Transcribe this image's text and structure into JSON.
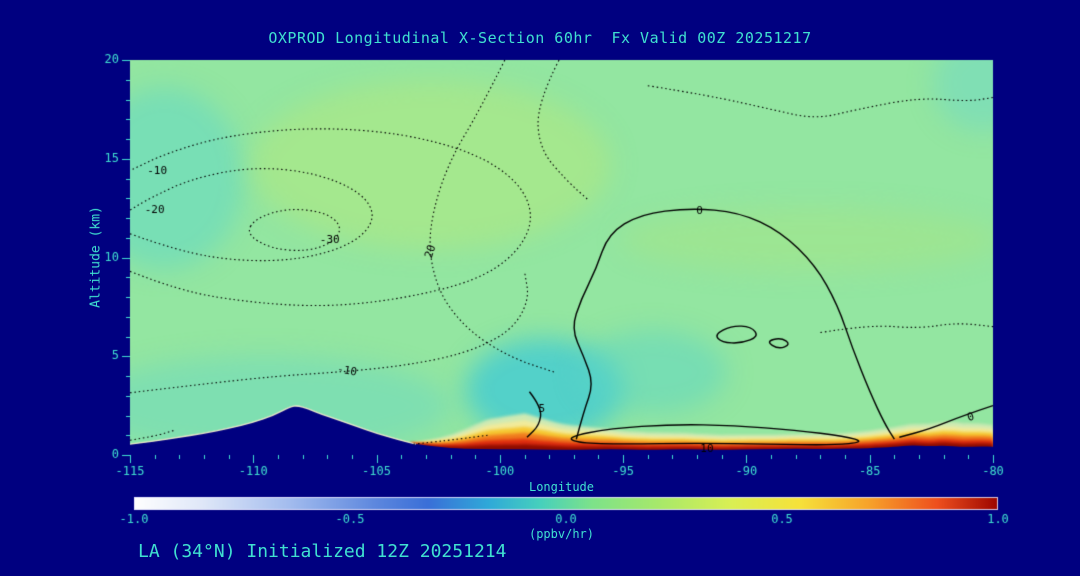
{
  "footer": {
    "text": "LA (34°N) Initialized 12Z 20251214"
  },
  "colors": {
    "page_background": "#000080",
    "axis_text": "#40e0d0",
    "contour_line": "#000000"
  },
  "chart_data": {
    "type": "heatmap",
    "title": "OXPROD Longitudinal X-Section 60hr  Fx Valid 00Z 20251217",
    "xlabel": "Longitude",
    "ylabel": "Altitude (km)",
    "xlim": [
      -115,
      -80
    ],
    "ylim": [
      0,
      20
    ],
    "x_ticks": [
      -115,
      -110,
      -105,
      -100,
      -95,
      -90,
      -85,
      -80
    ],
    "x_minor_step": 1,
    "y_ticks": [
      0,
      5,
      10,
      15,
      20
    ],
    "y_minor_step": 1,
    "base_color": "#93e6a1",
    "colorbar": {
      "units": "(ppbv/hr)",
      "ticks": [
        "-1.0",
        "-0.5",
        "0.0",
        "0.5",
        "1.0"
      ],
      "min": -1,
      "max": 1,
      "stops": [
        [
          0,
          "#ffffff"
        ],
        [
          0.08,
          "#dfe7f8"
        ],
        [
          0.18,
          "#a3bcee"
        ],
        [
          0.28,
          "#5d87de"
        ],
        [
          0.34,
          "#3a6fd8"
        ],
        [
          0.41,
          "#2fa9d9"
        ],
        [
          0.47,
          "#46d0bd"
        ],
        [
          0.53,
          "#7de28a"
        ],
        [
          0.61,
          "#a9e969"
        ],
        [
          0.69,
          "#d9ef54"
        ],
        [
          0.77,
          "#f6e23a"
        ],
        [
          0.85,
          "#f7a32b"
        ],
        [
          0.93,
          "#ee4f1e"
        ],
        [
          1,
          "#9c0500"
        ]
      ]
    },
    "terrain": [
      [
        -115,
        0.55
      ],
      [
        -114,
        0.7
      ],
      [
        -113,
        0.9
      ],
      [
        -112,
        1.1
      ],
      [
        -111,
        1.35
      ],
      [
        -110,
        1.65
      ],
      [
        -109.2,
        2.0
      ],
      [
        -108.5,
        2.45
      ],
      [
        -108.2,
        2.5
      ],
      [
        -107.8,
        2.35
      ],
      [
        -107.2,
        2.05
      ],
      [
        -106.5,
        1.75
      ],
      [
        -105.8,
        1.45
      ],
      [
        -105,
        1.1
      ],
      [
        -104.2,
        0.8
      ],
      [
        -103.4,
        0.55
      ],
      [
        -102.5,
        0.4
      ],
      [
        -101.5,
        0.32
      ],
      [
        -100,
        0.3
      ],
      [
        -98.5,
        0.28
      ],
      [
        -97,
        0.26
      ],
      [
        -95.5,
        0.3
      ],
      [
        -94,
        0.26
      ],
      [
        -92.5,
        0.3
      ],
      [
        -91,
        0.26
      ],
      [
        -89.5,
        0.3
      ],
      [
        -88,
        0.32
      ],
      [
        -86.5,
        0.3
      ],
      [
        -85,
        0.35
      ],
      [
        -84,
        0.42
      ],
      [
        -83.3,
        0.5
      ],
      [
        -82.6,
        0.44
      ],
      [
        -82,
        0.48
      ],
      [
        -81.2,
        0.4
      ],
      [
        -80.5,
        0.44
      ],
      [
        -80,
        0.42
      ]
    ],
    "fill_blobs": [
      {
        "lon": -113.6,
        "km": 14.0,
        "rlon": 3.2,
        "rkm": 4.6,
        "color": "#62d8c6",
        "alpha": 0.55
      },
      {
        "lon": -102.8,
        "km": 14.7,
        "rlon": 7.3,
        "rkm": 4.3,
        "color": "#b6ea7c",
        "alpha": 0.5
      },
      {
        "lon": -87.4,
        "km": 10.9,
        "rlon": 7.7,
        "rkm": 1.6,
        "color": "#aee478",
        "alpha": 0.35
      },
      {
        "lon": -109.5,
        "km": 2.5,
        "rlon": 7.5,
        "rkm": 2.5,
        "color": "#66d8c6",
        "alpha": 0.45
      },
      {
        "lon": -98.2,
        "km": 3.3,
        "rlon": 3.2,
        "rkm": 2.6,
        "color": "#38c8da",
        "alpha": 0.7
      },
      {
        "lon": -93.8,
        "km": 4.2,
        "rlon": 3.0,
        "rkm": 2.1,
        "color": "#5cd6c6",
        "alpha": 0.5
      },
      {
        "lon": -80.4,
        "km": 18.8,
        "rlon": 2.0,
        "rkm": 2.4,
        "color": "#6ad8cc",
        "alpha": 0.45
      }
    ],
    "surface_band": {
      "range": [
        -103.6,
        -80
      ],
      "layers": [
        {
          "t": 1.3,
          "color": "#cfeab4"
        },
        {
          "t": 1.05,
          "color": "#f2eb9a"
        },
        {
          "t": 0.82,
          "color": "#f6c832"
        },
        {
          "t": 0.6,
          "color": "#f07a1e"
        },
        {
          "t": 0.38,
          "color": "#df2e10"
        },
        {
          "t": 0.18,
          "color": "#8d0b00"
        }
      ],
      "scale": [
        [
          -103.6,
          0.0
        ],
        [
          -102,
          0.5
        ],
        [
          -100.5,
          1.15
        ],
        [
          -99,
          1.4
        ],
        [
          -97.5,
          1.0
        ],
        [
          -95,
          0.72
        ],
        [
          -92,
          0.6
        ],
        [
          -89,
          0.55
        ],
        [
          -86,
          0.6
        ],
        [
          -83.5,
          0.8
        ],
        [
          -81.5,
          0.95
        ],
        [
          -80,
          0.85
        ]
      ]
    },
    "contours": [
      {
        "style": "dotted",
        "closed": false,
        "points": [
          [
            -115,
            9.3
          ],
          [
            -113,
            8.3
          ],
          [
            -110,
            7.7
          ],
          [
            -107,
            7.5
          ],
          [
            -104,
            7.9
          ],
          [
            -101,
            8.8
          ],
          [
            -99.3,
            10.2
          ],
          [
            -98.6,
            12.0
          ],
          [
            -99.2,
            13.8
          ],
          [
            -101,
            15.3
          ],
          [
            -104,
            16.3
          ],
          [
            -107.5,
            16.6
          ],
          [
            -111,
            16.2
          ],
          [
            -113.5,
            15.3
          ],
          [
            -115,
            14.4
          ]
        ]
      },
      {
        "style": "dotted",
        "closed": false,
        "points": [
          [
            -115,
            11.2
          ],
          [
            -113,
            10.3
          ],
          [
            -110.5,
            9.8
          ],
          [
            -108,
            9.9
          ],
          [
            -105.9,
            10.7
          ],
          [
            -105,
            12.0
          ],
          [
            -105.6,
            13.3
          ],
          [
            -107.5,
            14.3
          ],
          [
            -110,
            14.6
          ],
          [
            -112.5,
            14.0
          ],
          [
            -114.2,
            13.0
          ],
          [
            -115,
            12.4
          ]
        ]
      },
      {
        "style": "dotted",
        "closed": true,
        "points": [
          [
            -110.3,
            11.2
          ],
          [
            -109.3,
            10.45
          ],
          [
            -107.8,
            10.3
          ],
          [
            -106.7,
            10.8
          ],
          [
            -106.4,
            11.6
          ],
          [
            -107.1,
            12.3
          ],
          [
            -108.6,
            12.5
          ],
          [
            -109.9,
            12.0
          ]
        ]
      },
      {
        "style": "dotted",
        "closed": false,
        "points": [
          [
            -99.8,
            20
          ],
          [
            -100.8,
            17.5
          ],
          [
            -102.0,
            15.0
          ],
          [
            -102.7,
            12.5
          ],
          [
            -102.9,
            10.3
          ],
          [
            -102.4,
            8.0
          ],
          [
            -101.2,
            6.2
          ],
          [
            -99.5,
            4.9
          ],
          [
            -97.8,
            4.2
          ]
        ]
      },
      {
        "style": "dotted",
        "closed": false,
        "points": [
          [
            -97.6,
            20
          ],
          [
            -98.5,
            17.8
          ],
          [
            -98.4,
            15.5
          ],
          [
            -97.3,
            13.9
          ],
          [
            -96.4,
            12.9
          ]
        ]
      },
      {
        "style": "dotted",
        "closed": false,
        "points": [
          [
            -115,
            3.15
          ],
          [
            -112,
            3.6
          ],
          [
            -109,
            4.0
          ],
          [
            -106.5,
            4.2
          ],
          [
            -104,
            4.5
          ],
          [
            -101.5,
            5.1
          ],
          [
            -99.6,
            6.2
          ],
          [
            -98.8,
            7.8
          ],
          [
            -99.0,
            9.3
          ]
        ]
      },
      {
        "style": "dotted",
        "closed": false,
        "points": [
          [
            -87.0,
            6.2
          ],
          [
            -85,
            6.6
          ],
          [
            -83,
            6.4
          ],
          [
            -81.5,
            6.7
          ],
          [
            -80,
            6.5
          ]
        ]
      },
      {
        "style": "dotted",
        "closed": false,
        "points": [
          [
            -94,
            18.7
          ],
          [
            -91.5,
            18.2
          ],
          [
            -89,
            17.5
          ],
          [
            -87.2,
            17.0
          ],
          [
            -85.5,
            17.5
          ],
          [
            -83,
            18.1
          ],
          [
            -81,
            17.9
          ],
          [
            -80,
            18.1
          ]
        ]
      },
      {
        "style": "dotted",
        "closed": false,
        "points": [
          [
            -115,
            0.75
          ],
          [
            -114,
            0.95
          ],
          [
            -113.2,
            1.25
          ]
        ]
      },
      {
        "style": "dotted",
        "closed": false,
        "points": [
          [
            -103.5,
            0.55
          ],
          [
            -102,
            0.75
          ],
          [
            -100.5,
            1.0
          ]
        ]
      },
      {
        "style": "solid",
        "closed": false,
        "points": [
          [
            -96.9,
            0.8
          ],
          [
            -96.6,
            2.2
          ],
          [
            -96.2,
            3.6
          ],
          [
            -96.6,
            5.0
          ],
          [
            -97.1,
            6.4
          ],
          [
            -96.7,
            7.9
          ],
          [
            -96.1,
            9.4
          ],
          [
            -95.6,
            11.2
          ],
          [
            -94.3,
            12.2
          ],
          [
            -92.3,
            12.5
          ],
          [
            -90.3,
            12.3
          ],
          [
            -88.6,
            11.3
          ],
          [
            -87.2,
            9.6
          ],
          [
            -86.3,
            7.6
          ],
          [
            -85.7,
            5.4
          ],
          [
            -85.0,
            3.2
          ],
          [
            -84.4,
            1.6
          ],
          [
            -84.0,
            0.8
          ]
        ]
      },
      {
        "style": "solid",
        "closed": true,
        "points": [
          [
            -97.3,
            0.9
          ],
          [
            -95.5,
            1.35
          ],
          [
            -93,
            1.55
          ],
          [
            -90.5,
            1.5
          ],
          [
            -88,
            1.25
          ],
          [
            -86,
            0.95
          ],
          [
            -85.2,
            0.65
          ],
          [
            -86.5,
            0.5
          ],
          [
            -89,
            0.55
          ],
          [
            -92,
            0.6
          ],
          [
            -95,
            0.55
          ],
          [
            -96.8,
            0.6
          ]
        ]
      },
      {
        "style": "solid",
        "closed": true,
        "points": [
          [
            -91.3,
            6.1
          ],
          [
            -90.6,
            6.55
          ],
          [
            -89.8,
            6.5
          ],
          [
            -89.5,
            6.0
          ],
          [
            -90.2,
            5.65
          ],
          [
            -91.0,
            5.7
          ]
        ]
      },
      {
        "style": "solid",
        "closed": true,
        "points": [
          [
            -89.2,
            5.75
          ],
          [
            -88.6,
            5.95
          ],
          [
            -88.2,
            5.6
          ],
          [
            -88.7,
            5.35
          ]
        ]
      },
      {
        "style": "solid",
        "closed": false,
        "points": [
          [
            -80,
            2.5
          ],
          [
            -81.2,
            2.0
          ],
          [
            -82.6,
            1.3
          ],
          [
            -83.8,
            0.9
          ]
        ]
      },
      {
        "style": "solid",
        "closed": false,
        "points": [
          [
            -98.8,
            3.2
          ],
          [
            -98.3,
            2.4
          ],
          [
            -98.4,
            1.5
          ],
          [
            -98.9,
            0.9
          ]
        ]
      }
    ],
    "contour_labels": [
      {
        "text": "-10",
        "lon": -113.9,
        "km": 14.35,
        "rot": 0
      },
      {
        "text": "-20",
        "lon": -114.0,
        "km": 12.4,
        "rot": 0
      },
      {
        "text": "-30",
        "lon": -106.9,
        "km": 10.9,
        "rot": 0
      },
      {
        "text": "20",
        "lon": -102.8,
        "km": 10.3,
        "rot": -72
      },
      {
        "text": "-10",
        "lon": -106.2,
        "km": 4.25,
        "rot": 10
      },
      {
        "text": "0",
        "lon": -91.9,
        "km": 12.35,
        "rot": 0
      },
      {
        "text": "5",
        "lon": -98.3,
        "km": 2.3,
        "rot": 0
      },
      {
        "text": "10",
        "lon": -91.6,
        "km": 0.3,
        "rot": 0
      },
      {
        "text": "0",
        "lon": -80.9,
        "km": 1.9,
        "rot": -20
      }
    ]
  }
}
